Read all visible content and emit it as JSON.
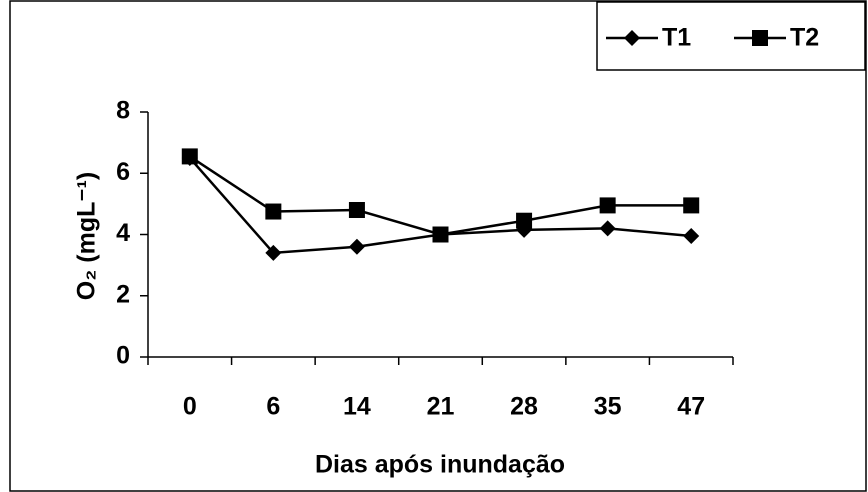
{
  "chart_data": {
    "type": "line",
    "x_label": "Dias após inundação",
    "y_label": "O₂ (mgL⁻¹)",
    "categories": [
      "0",
      "6",
      "14",
      "21",
      "28",
      "35",
      "47"
    ],
    "series": [
      {
        "name": "T1",
        "color": "#000000",
        "marker": "diamond",
        "values": [
          6.5,
          3.4,
          3.6,
          4.0,
          4.15,
          4.2,
          3.95
        ]
      },
      {
        "name": "T2",
        "color": "#000000",
        "marker": "square",
        "values": [
          6.55,
          4.75,
          4.8,
          4.0,
          4.45,
          4.95,
          4.95
        ]
      }
    ],
    "ylim": [
      0,
      8
    ],
    "yticks": [
      0,
      2,
      4,
      6,
      8
    ],
    "grid": false,
    "legend": "top-right"
  }
}
